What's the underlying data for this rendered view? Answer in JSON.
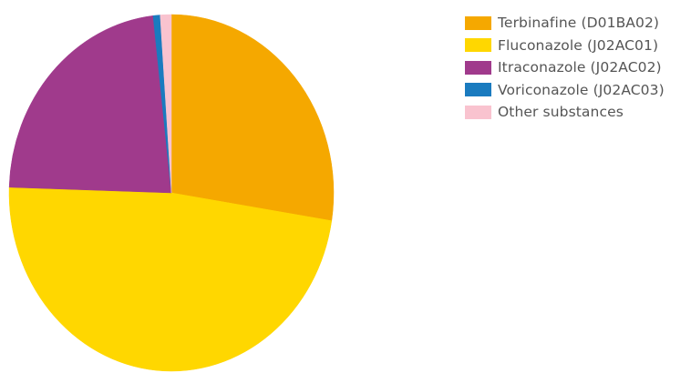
{
  "chart_data": {
    "type": "pie",
    "series": [
      {
        "name": "Terbinafine (D01BA02)",
        "value": 27.5,
        "color": "#F5A800"
      },
      {
        "name": "Fluconazole (J02AC01)",
        "value": 48.0,
        "color": "#FFD700"
      },
      {
        "name": "Itraconazole (J02AC02)",
        "value": 22.7,
        "color": "#A03A8C"
      },
      {
        "name": "Voriconazole (J02AC03)",
        "value": 0.7,
        "color": "#1A7BBF"
      },
      {
        "name": "Other substances",
        "value": 1.1,
        "color": "#F9C3CF"
      }
    ],
    "start_angle_deg": 90,
    "direction": "clockwise",
    "legend_position": "right"
  }
}
